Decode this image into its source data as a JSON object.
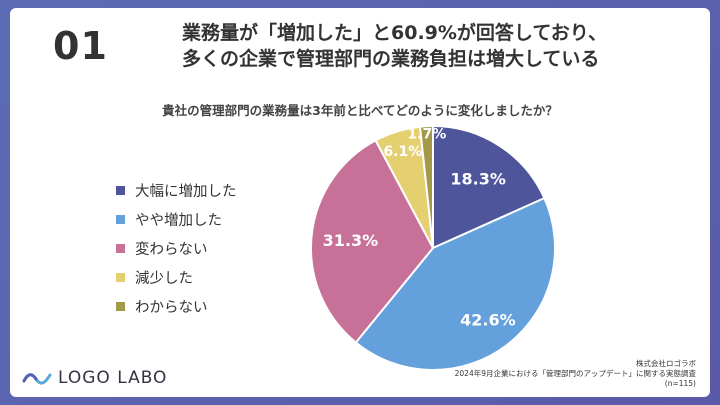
{
  "slide_number": "01",
  "headline": {
    "line1": "業務量が「増加した」と60.9%が回答しており、",
    "line2": "多くの企業で管理部門の業務負担は増大している"
  },
  "question": "貴社の管理部門の業務量は3年前と比べてどのように変化しましたか？",
  "chart_data": {
    "type": "pie",
    "title": "貴社の管理部門の業務量は3年前と比べてどのように変化しましたか？",
    "slices": [
      {
        "label": "大幅に増加した",
        "value": 18.3,
        "display": "18.3%",
        "color": "#4e559b"
      },
      {
        "label": "やや増加した",
        "value": 42.6,
        "display": "42.6%",
        "color": "#63a0dc"
      },
      {
        "label": "変わらない",
        "value": 31.3,
        "display": "31.3%",
        "color": "#c87198"
      },
      {
        "label": "減少した",
        "value": 6.1,
        "display": "6.1%",
        "color": "#e4d071"
      },
      {
        "label": "わからない",
        "value": 1.7,
        "display": "1.7%",
        "color": "#a29a48"
      }
    ],
    "start_angle_deg": 0,
    "direction": "clockwise",
    "legend_position": "left"
  },
  "logo": {
    "text": "LOGO LABO"
  },
  "source": {
    "company": "株式会社ロゴラボ",
    "survey": "2024年9月企業における「管理部門のアップデート」に関する実態調査",
    "sample": "(n=115)"
  }
}
